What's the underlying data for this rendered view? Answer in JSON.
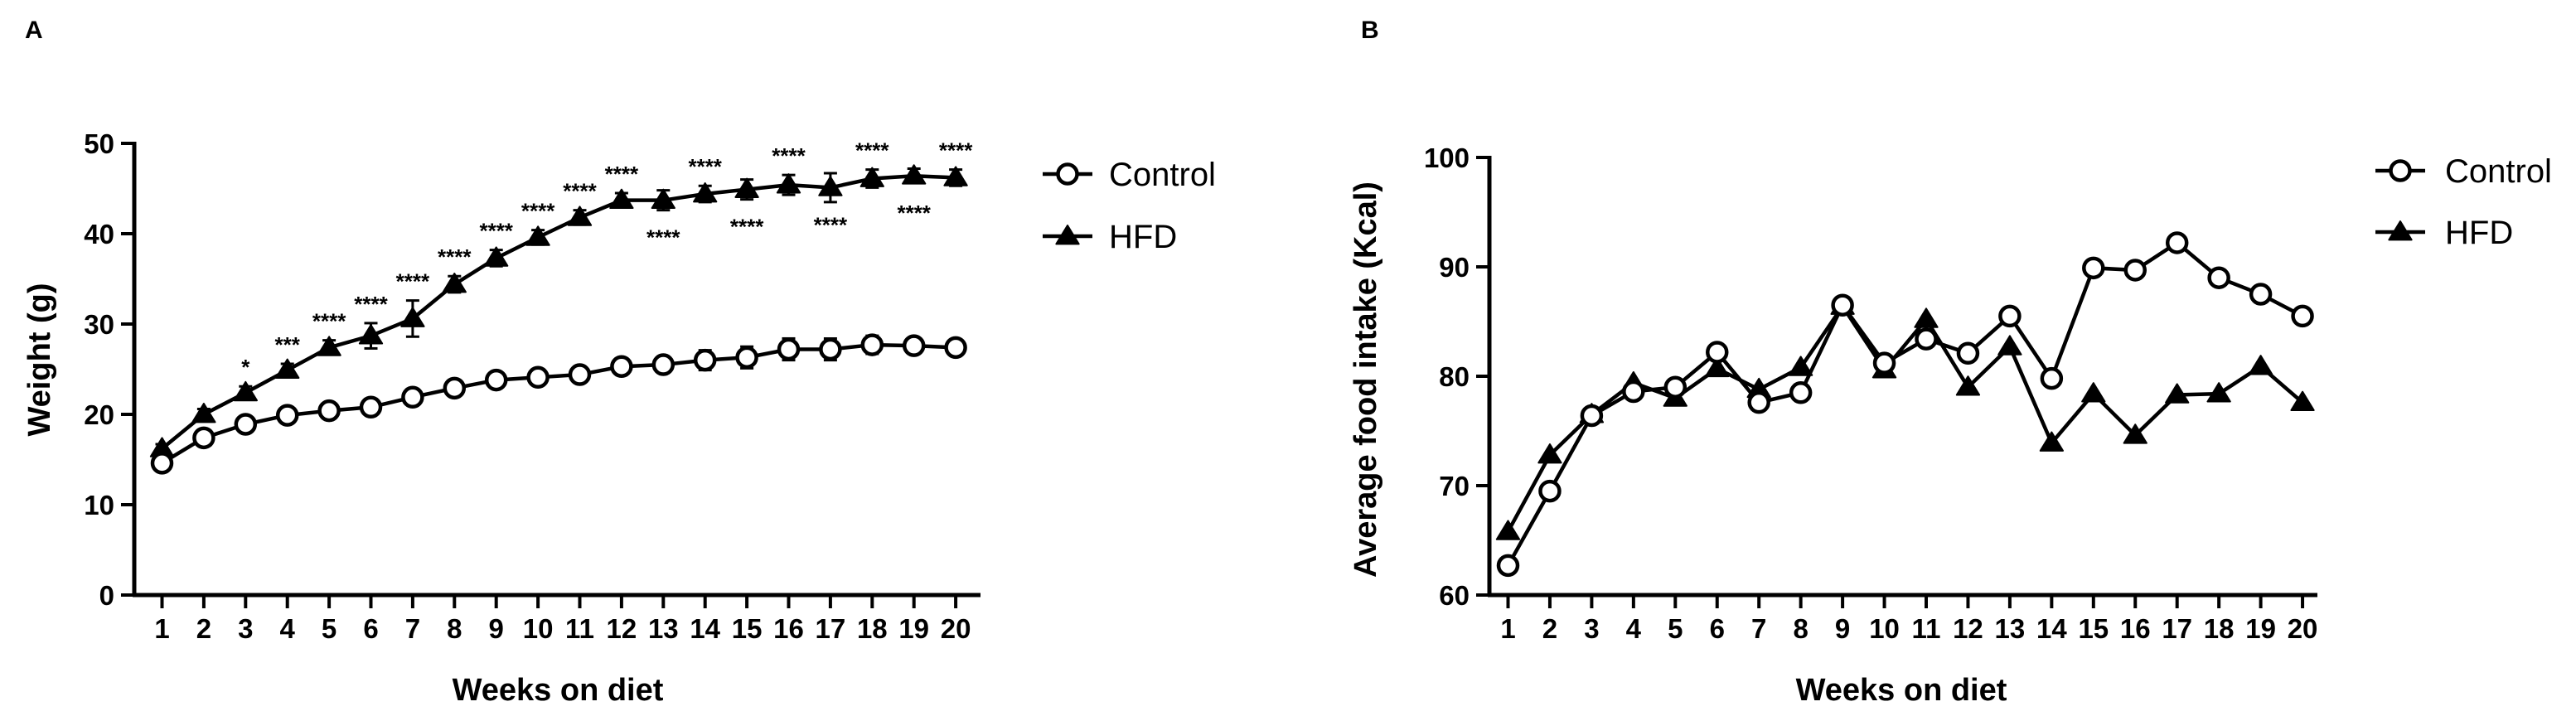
{
  "figure": {
    "panel_a_letter": "A",
    "panel_b_letter": "B"
  },
  "chart_data": [
    {
      "type": "line",
      "panel": "A",
      "xlabel": "Weeks on diet",
      "ylabel": "Weight (g)",
      "x": [
        1,
        2,
        3,
        4,
        5,
        6,
        7,
        8,
        9,
        10,
        11,
        12,
        13,
        14,
        15,
        16,
        17,
        18,
        19,
        20
      ],
      "xlim": [
        0.5,
        20.7
      ],
      "ylim": [
        0,
        50
      ],
      "yticks": [
        0,
        10,
        20,
        30,
        40,
        50
      ],
      "grid": false,
      "legend_position": "top-right",
      "series": [
        {
          "name": "Control",
          "marker": "open-circle",
          "values": [
            14.6,
            17.4,
            18.9,
            19.9,
            20.4,
            20.8,
            21.9,
            22.9,
            23.8,
            24.1,
            24.4,
            25.3,
            25.5,
            26.0,
            26.3,
            27.2,
            27.2,
            27.7,
            27.6,
            27.4
          ],
          "errors": [
            0.6,
            0.5,
            0.5,
            0.5,
            0.5,
            0.5,
            0.6,
            0.5,
            0.6,
            0.6,
            0.7,
            0.7,
            0.8,
            1.1,
            1.2,
            1.2,
            1.2,
            1.0,
            0.8,
            0.8
          ]
        },
        {
          "name": "HFD",
          "marker": "filled-triangle",
          "values": [
            16.2,
            20.0,
            22.4,
            24.9,
            27.4,
            28.7,
            30.6,
            34.4,
            37.3,
            39.6,
            41.8,
            43.7,
            43.7,
            44.4,
            44.9,
            45.4,
            45.1,
            46.1,
            46.4,
            46.2
          ],
          "errors": [
            0.5,
            0.6,
            0.7,
            0.7,
            0.8,
            1.4,
            2.0,
            0.9,
            0.9,
            0.8,
            0.8,
            0.8,
            1.1,
            0.9,
            1.1,
            1.1,
            1.6,
            1.0,
            0.8,
            0.9
          ]
        }
      ],
      "annotations": [
        {
          "week": 3,
          "text": "*",
          "position": "above"
        },
        {
          "week": 4,
          "text": "***",
          "position": "above"
        },
        {
          "week": 5,
          "text": "****",
          "position": "above"
        },
        {
          "week": 6,
          "text": "****",
          "position": "above"
        },
        {
          "week": 7,
          "text": "****",
          "position": "above"
        },
        {
          "week": 8,
          "text": "****",
          "position": "above"
        },
        {
          "week": 9,
          "text": "****",
          "position": "above"
        },
        {
          "week": 10,
          "text": "****",
          "position": "above"
        },
        {
          "week": 11,
          "text": "****",
          "position": "above"
        },
        {
          "week": 12,
          "text": "****",
          "position": "above"
        },
        {
          "week": 13,
          "text": "****",
          "position": "below"
        },
        {
          "week": 14,
          "text": "****",
          "position": "above"
        },
        {
          "week": 15,
          "text": "****",
          "position": "below"
        },
        {
          "week": 16,
          "text": "****",
          "position": "above"
        },
        {
          "week": 17,
          "text": "****",
          "position": "below"
        },
        {
          "week": 18,
          "text": "****",
          "position": "above"
        },
        {
          "week": 19,
          "text": "****",
          "position": "below"
        },
        {
          "week": 20,
          "text": "****",
          "position": "above"
        }
      ]
    },
    {
      "type": "line",
      "panel": "B",
      "xlabel": "Weeks on diet",
      "ylabel": "Average food intake (Kcal)",
      "x": [
        1,
        2,
        3,
        4,
        5,
        6,
        7,
        8,
        9,
        10,
        11,
        12,
        13,
        14,
        15,
        16,
        17,
        18,
        19,
        20
      ],
      "xlim": [
        0.5,
        20.7
      ],
      "ylim": [
        60,
        100
      ],
      "yticks": [
        60,
        70,
        80,
        90,
        100
      ],
      "grid": false,
      "legend_position": "top-right",
      "series": [
        {
          "name": "Control",
          "marker": "open-circle",
          "values": [
            62.7,
            69.5,
            76.4,
            78.6,
            79.0,
            82.2,
            77.6,
            78.5,
            86.5,
            81.2,
            83.4,
            82.1,
            85.5,
            79.8,
            89.9,
            89.7,
            92.2,
            89.0,
            87.5,
            85.5
          ]
        },
        {
          "name": "HFD",
          "marker": "filled-triangle",
          "values": [
            65.8,
            72.8,
            76.5,
            79.4,
            78.0,
            80.7,
            78.8,
            80.8,
            86.4,
            80.6,
            85.2,
            79.0,
            82.7,
            73.9,
            78.4,
            74.6,
            78.3,
            78.4,
            80.9,
            77.6
          ]
        }
      ]
    }
  ]
}
